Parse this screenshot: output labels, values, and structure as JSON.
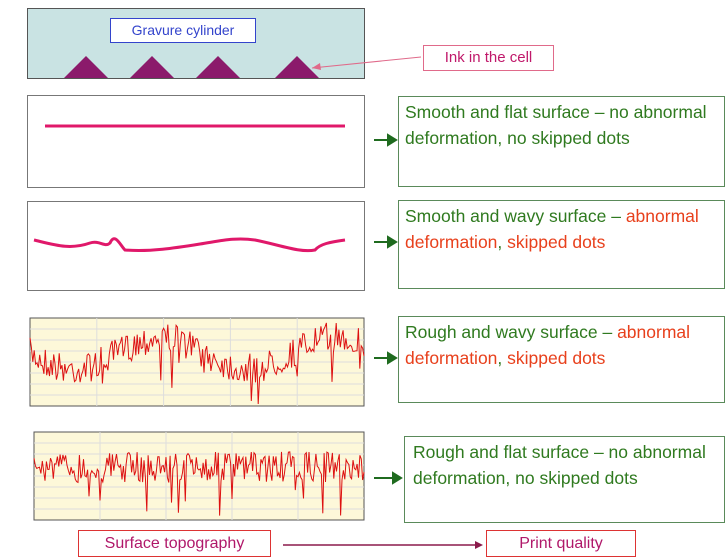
{
  "cylinder": {
    "label": "Gravure cylinder",
    "callout": "Ink in the cell"
  },
  "rows": [
    {
      "description": [
        {
          "text": "Smooth and flat surface – no abnormal deformation, no skipped dots",
          "color": "#2f7a1f"
        }
      ]
    },
    {
      "description": [
        {
          "text": "Smooth and wavy surface – ",
          "color": "#2f7a1f"
        },
        {
          "text": "abnormal deformation",
          "color": "#e8401c"
        },
        {
          "text": ", ",
          "color": "#2f7a1f"
        },
        {
          "text": "skipped dots",
          "color": "#e8401c"
        }
      ]
    },
    {
      "description": [
        {
          "text": "Rough and wavy surface – ",
          "color": "#2f7a1f"
        },
        {
          "text": "abnormal deformation",
          "color": "#e8401c"
        },
        {
          "text": ", ",
          "color": "#2f7a1f"
        },
        {
          "text": "skipped dots",
          "color": "#e8401c"
        }
      ]
    },
    {
      "description": [
        {
          "text": "Rough and flat surface  – no abnormal deformation, no skipped dots",
          "color": "#2f7a1f"
        }
      ]
    }
  ],
  "footer": {
    "left": "Surface topography",
    "right": "Print quality"
  }
}
